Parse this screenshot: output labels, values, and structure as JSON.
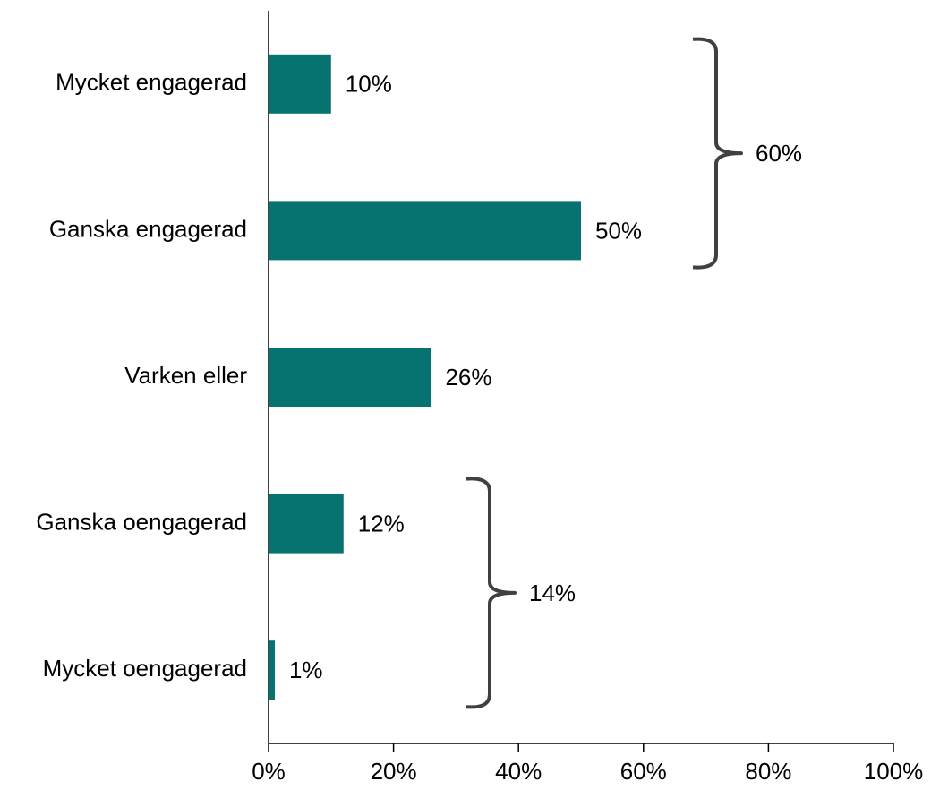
{
  "chart_data": {
    "type": "hbar",
    "categories": [
      "Mycket engagerad",
      "Ganska engagerad",
      "Varken eller",
      "Ganska oengagerad",
      "Mycket oengagerad"
    ],
    "values": [
      10,
      50,
      26,
      12,
      1
    ],
    "value_labels": [
      "10%",
      "50%",
      "26%",
      "12%",
      "1%"
    ],
    "color": "#077370",
    "xlim": [
      0,
      100
    ],
    "xticks": [
      {
        "value": 0,
        "label": "0%"
      },
      {
        "value": 20,
        "label": "20%"
      },
      {
        "value": 40,
        "label": "40%"
      },
      {
        "value": 60,
        "label": "60%"
      },
      {
        "value": 80,
        "label": "80%"
      },
      {
        "value": 100,
        "label": "100%"
      }
    ],
    "brackets": [
      {
        "value": 60,
        "label": "60%",
        "span": [
          0,
          1
        ]
      },
      {
        "value": 14,
        "label": "14%",
        "span": [
          3,
          4
        ]
      }
    ]
  }
}
